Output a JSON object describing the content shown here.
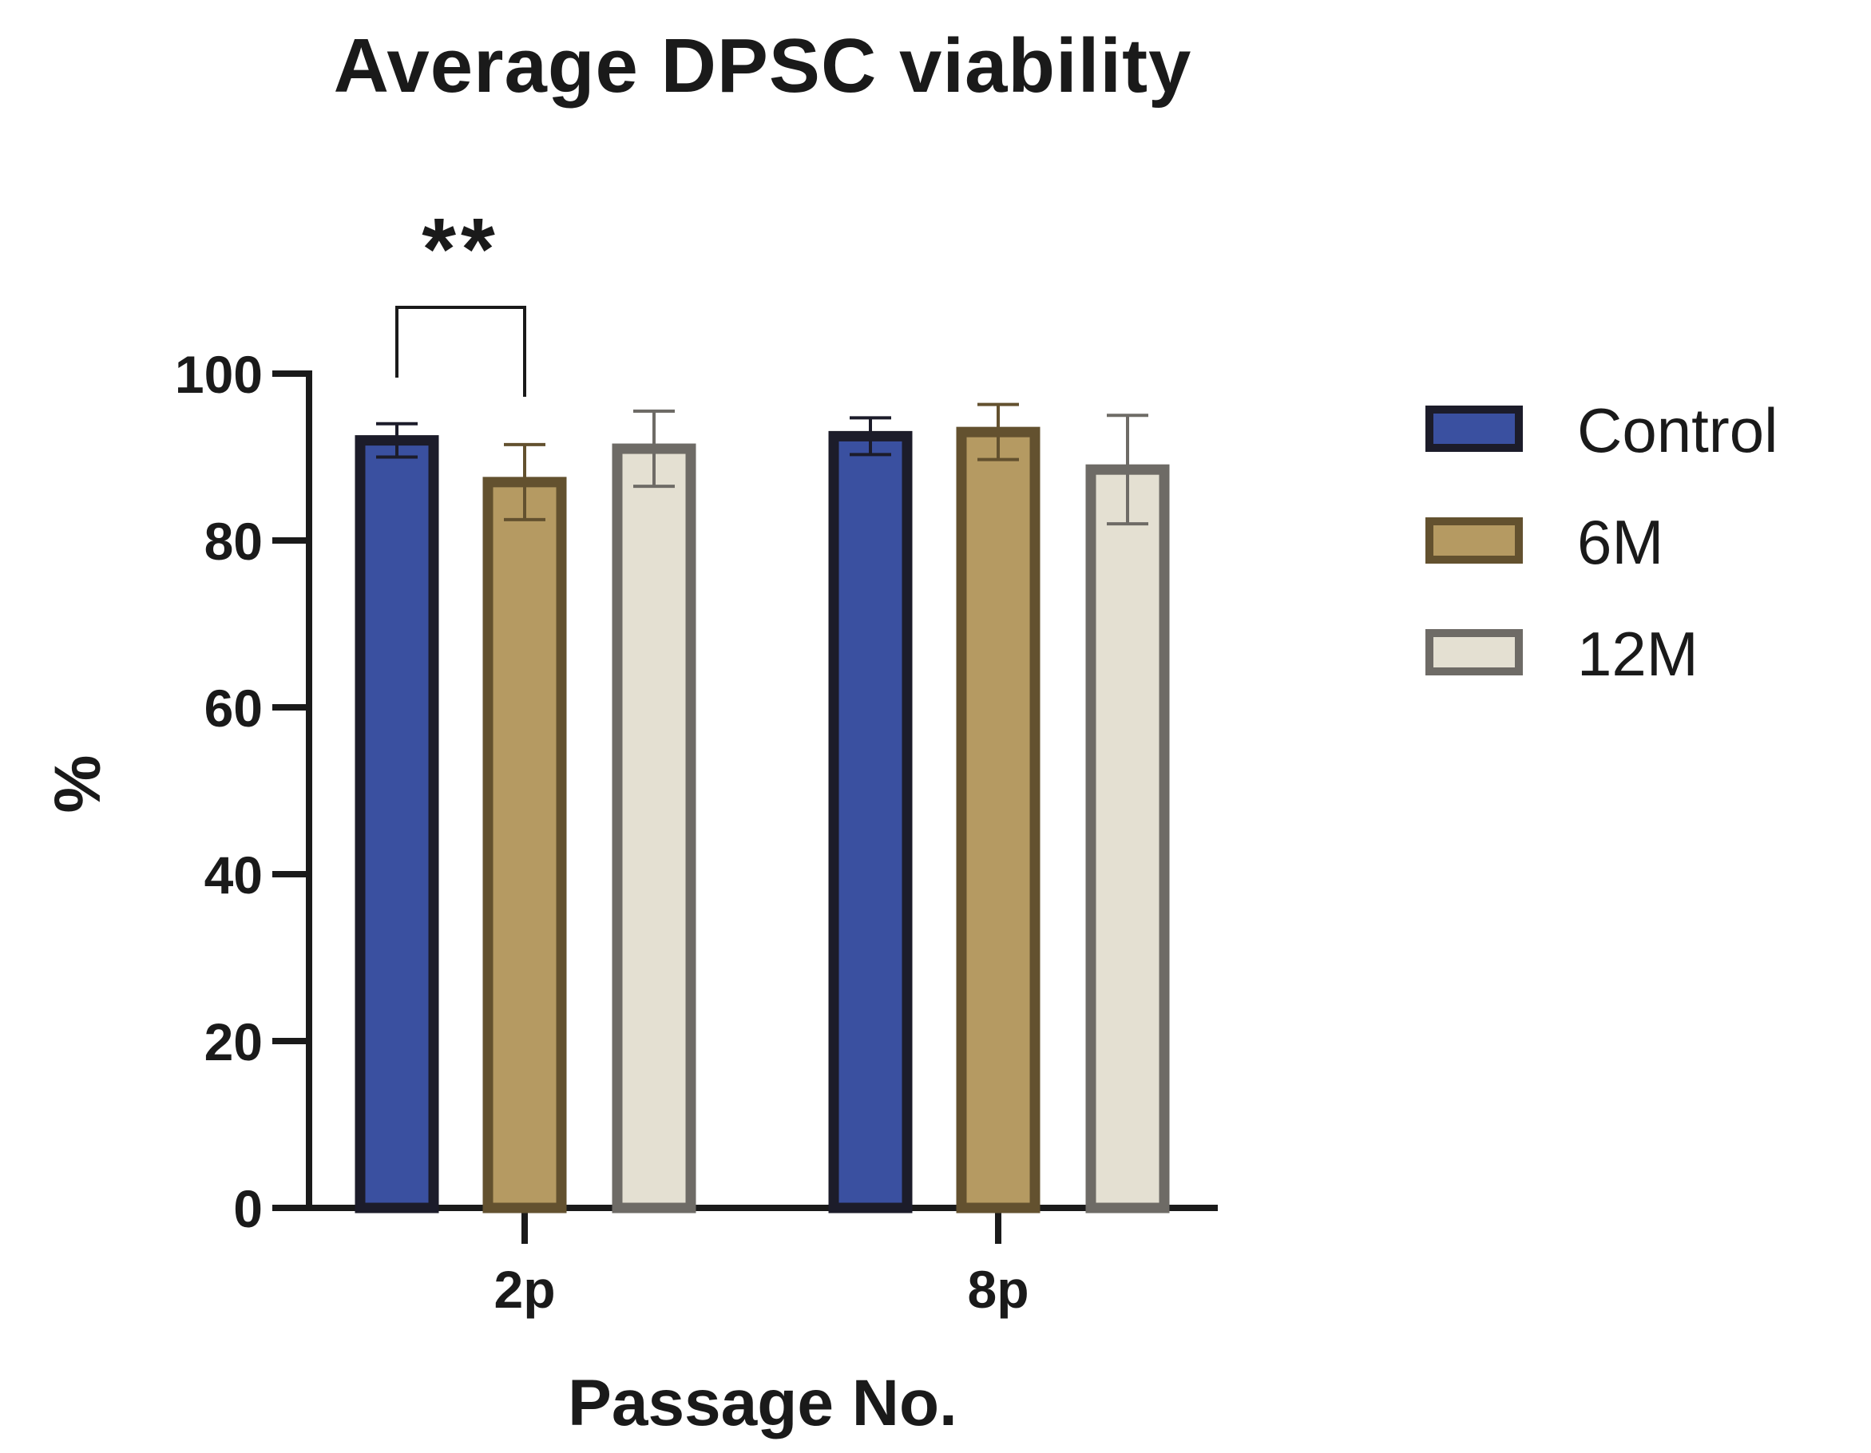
{
  "chart_data": {
    "type": "bar",
    "title": "Average DPSC viability",
    "xlabel": "Passage No.",
    "ylabel": "%",
    "ylim": [
      0,
      100
    ],
    "yticks": [
      0,
      20,
      40,
      60,
      80,
      100
    ],
    "categories": [
      "2p",
      "8p"
    ],
    "series": [
      {
        "name": "Control",
        "fill": "#3a50a0",
        "stroke": "#1c1c2a",
        "values": [
          92,
          92.5
        ],
        "errors": [
          2,
          2.2
        ]
      },
      {
        "name": "6M",
        "fill": "#b59a62",
        "stroke": "#63512f",
        "values": [
          87,
          93
        ],
        "errors": [
          4.5,
          3.3
        ]
      },
      {
        "name": "12M",
        "fill": "#e4e0d2",
        "stroke": "#6e6b66",
        "values": [
          91,
          88.5
        ],
        "errors": [
          4.5,
          6.5
        ]
      }
    ],
    "significance": [
      {
        "label": "**",
        "category": "2p",
        "between": [
          "Control",
          "6M"
        ]
      }
    ],
    "legend": {
      "position": "right"
    },
    "grid": false
  }
}
